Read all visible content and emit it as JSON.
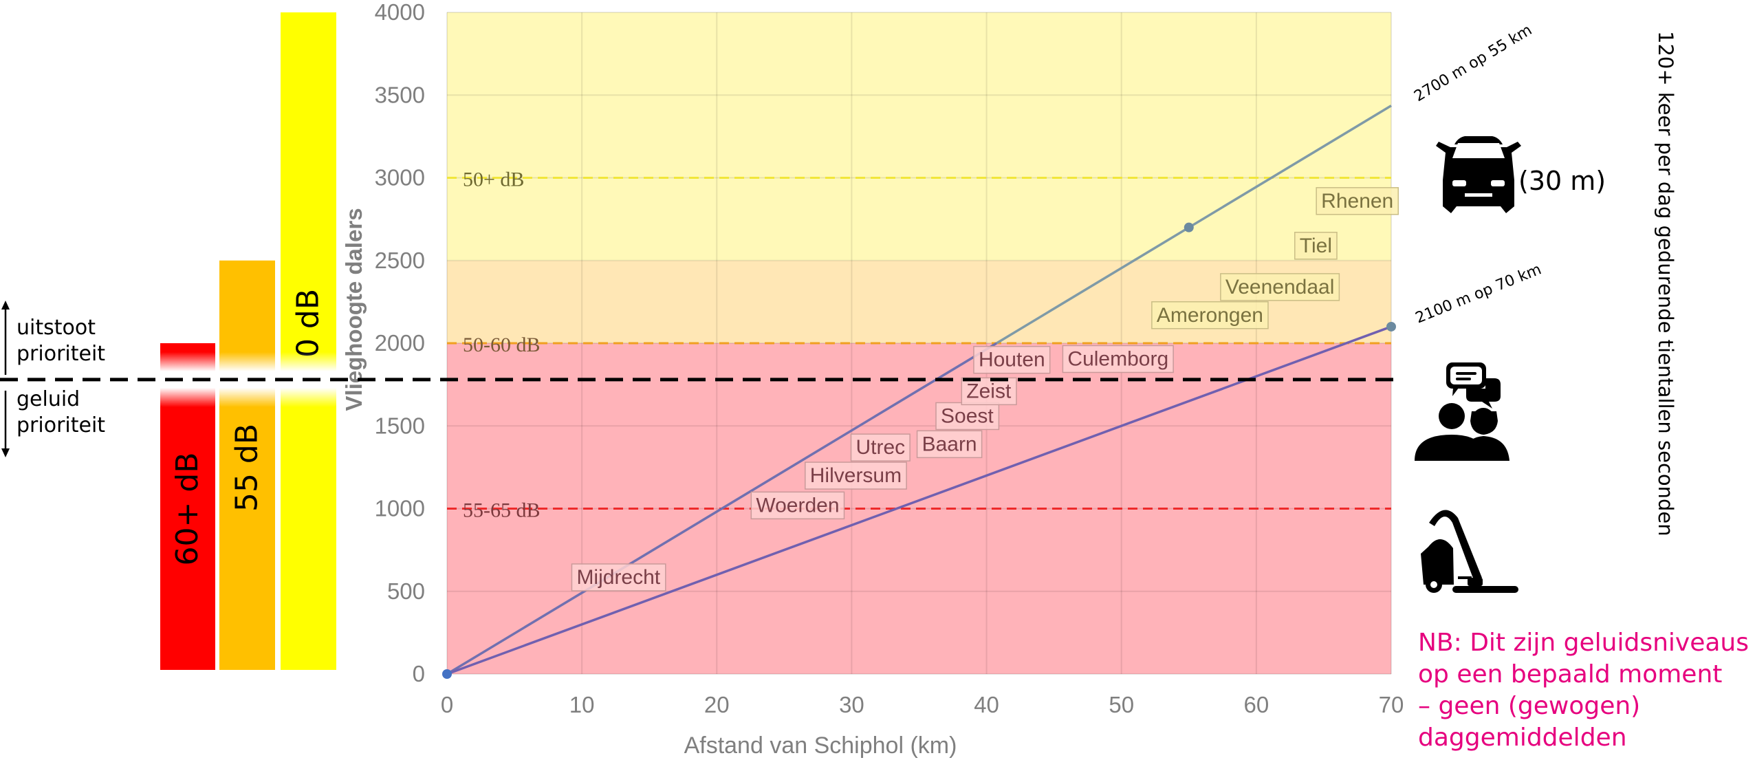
{
  "chart_data": {
    "type": "line",
    "title": "",
    "xlabel": "Afstand van Schiphol (km)",
    "ylabel": "Vlieghoogte dalers",
    "xlim": [
      0,
      70
    ],
    "ylim": [
      0,
      4000
    ],
    "x_ticks": [
      0,
      10,
      20,
      30,
      40,
      50,
      60,
      70
    ],
    "y_ticks": [
      0,
      500,
      1000,
      1500,
      2000,
      2500,
      3000,
      3500,
      4000
    ],
    "grid": true,
    "series": [
      {
        "x": [
          0,
          70
        ],
        "y": [
          0,
          3436
        ],
        "color": "#7070b0",
        "color_upper": "#7f9aa7",
        "marker_x": 55,
        "marker_y": 2700
      },
      {
        "x": [
          0,
          70
        ],
        "y": [
          0,
          2100
        ],
        "color": "#7060b0",
        "marker_x": 70,
        "marker_y": 2100
      }
    ],
    "bands": [
      {
        "from": 0,
        "to": 2000,
        "color": "#ffb3b9"
      },
      {
        "from": 2000,
        "to": 2500,
        "color": "#ffe7b5"
      },
      {
        "from": 2500,
        "to": 4000,
        "color": "#fff9b8"
      }
    ],
    "reference_lines": [
      {
        "y": 3000,
        "label": "50+ dB",
        "color": "#f1e63a",
        "label_color": "#6e6930"
      },
      {
        "y": 2000,
        "label": "50-60 dB",
        "color": "#f0a020",
        "label_color": "#7a5a37"
      },
      {
        "y": 1000,
        "label": "55-65 dB",
        "color": "#ee2a2a",
        "label_color": "#7d3a3e"
      }
    ],
    "places": [
      {
        "name": "Mijdrecht",
        "x": 9.2,
        "y": 495
      },
      {
        "name": "Woerden",
        "x": 22.5,
        "y": 930
      },
      {
        "name": "Hilversum",
        "x": 26.5,
        "y": 1110
      },
      {
        "name": "Utrec",
        "x": 29.9,
        "y": 1280
      },
      {
        "name": "Baarn",
        "x": 34.8,
        "y": 1300
      },
      {
        "name": "Soest",
        "x": 36.2,
        "y": 1470
      },
      {
        "name": "Zeist",
        "x": 38.1,
        "y": 1620
      },
      {
        "name": "Houten",
        "x": 39.0,
        "y": 1810
      },
      {
        "name": "Culemborg",
        "x": 45.6,
        "y": 1815
      },
      {
        "name": "Amerongen",
        "x": 52.2,
        "y": 2080
      },
      {
        "name": "Veenendaal",
        "x": 57.3,
        "y": 2250
      },
      {
        "name": "Tiel",
        "x": 62.8,
        "y": 2500
      },
      {
        "name": "Rhenen",
        "x": 64.4,
        "y": 2770
      }
    ],
    "annotations": {
      "line1_end": "2700 m op 55 km",
      "line2_end": "2100 m op 70 km"
    },
    "threshold_y": 1780
  },
  "left_bars": [
    {
      "label": "60+ dB",
      "top": 2000,
      "color": "#ff0000"
    },
    {
      "label": "55 dB",
      "top": 2500,
      "color": "#ffc000"
    },
    {
      "label": "0 dB",
      "top": 4000,
      "color": "#ffff00"
    }
  ],
  "priority": {
    "upper": [
      "uitstoot",
      "prioriteit"
    ],
    "lower": [
      "geluid",
      "prioriteit"
    ]
  },
  "right": {
    "vertical_text": "120+ keer per dag gedurende tientallen seconden",
    "car_text": "(30 m)",
    "icons": [
      "car-icon",
      "conversation-icon",
      "vacuum-cleaner-icon"
    ]
  },
  "nb": [
    "NB: Dit zijn geluidsniveaus",
    "op een bepaald moment",
    "– geen (gewogen)",
    "daggemiddelden"
  ]
}
